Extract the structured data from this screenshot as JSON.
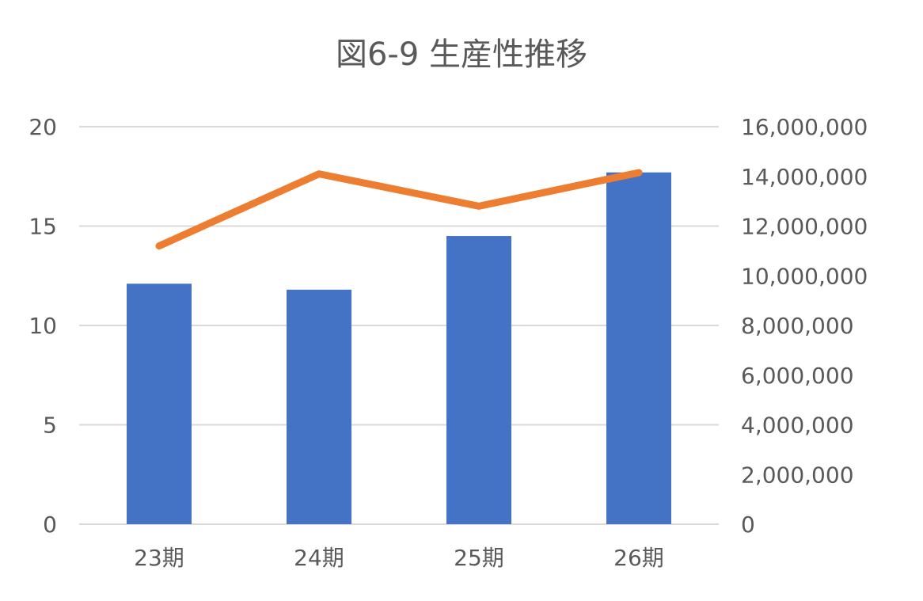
{
  "chart_data": {
    "type": "bar",
    "title": "図6-9 生産性推移",
    "categories": [
      "23期",
      "24期",
      "25期",
      "26期"
    ],
    "series": [
      {
        "type": "bar",
        "axis": "left",
        "color": "#4472c4",
        "values": [
          12.1,
          11.8,
          14.5,
          17.7
        ]
      },
      {
        "type": "line",
        "axis": "right",
        "color": "#ed7d31",
        "values": [
          11200000,
          14100000,
          12800000,
          14150000
        ]
      }
    ],
    "y_left": {
      "ylim": [
        0,
        20
      ],
      "ticks": [
        0,
        5,
        10,
        15,
        20
      ],
      "tick_labels": [
        "0",
        "5",
        "10",
        "15",
        "20"
      ]
    },
    "y_right": {
      "ylim": [
        0,
        16000000
      ],
      "ticks": [
        0,
        2000000,
        4000000,
        6000000,
        8000000,
        10000000,
        12000000,
        14000000,
        16000000
      ],
      "tick_labels": [
        "0",
        "2,000,000",
        "4,000,000",
        "6,000,000",
        "8,000,000",
        "10,000,000",
        "12,000,000",
        "14,000,000",
        "16,000,000"
      ]
    },
    "grid": true,
    "legend": "none"
  }
}
